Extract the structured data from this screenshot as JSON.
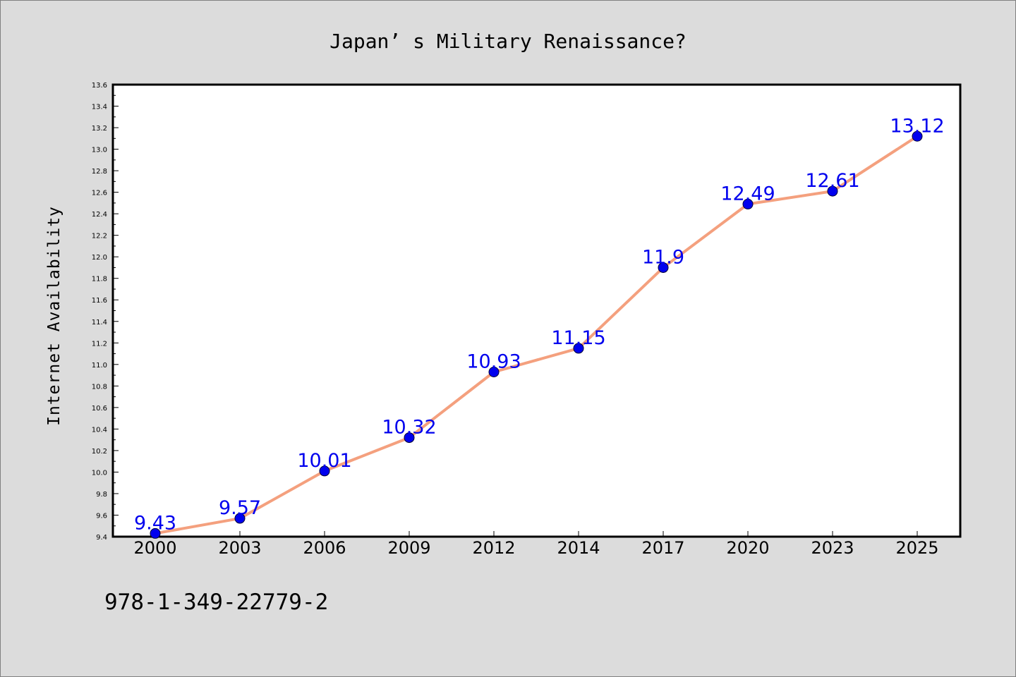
{
  "chart_data": {
    "type": "line",
    "title": "Japan’ s Military Renaissance?",
    "xlabel": "",
    "ylabel": "Internet Availability",
    "categories": [
      "2000",
      "2003",
      "2006",
      "2009",
      "2012",
      "2014",
      "2017",
      "2020",
      "2023",
      "2025"
    ],
    "series": [
      {
        "values": [
          9.43,
          9.57,
          10.01,
          10.32,
          10.93,
          11.15,
          11.9,
          12.49,
          12.61,
          13.12
        ]
      }
    ],
    "data_labels": [
      "9.43",
      "9.57",
      "10.01",
      "10.32",
      "10.93",
      "11.15",
      "11.9",
      "12.49",
      "12.61",
      "13.12"
    ],
    "ylim": [
      9.4,
      13.6
    ],
    "yticks": [
      "9.4",
      "9.6",
      "9.8",
      "10.0",
      "10.2",
      "10.4",
      "10.6",
      "10.8",
      "11.0",
      "11.2",
      "11.4",
      "11.6",
      "11.8",
      "12.0",
      "12.2",
      "12.4",
      "12.6",
      "12.8",
      "13.0",
      "13.2",
      "13.4",
      "13.6"
    ],
    "grid": false,
    "legend": "none",
    "colors": {
      "line": "#f4a07e",
      "marker": "#0000ee",
      "data_label": "#0000ee",
      "background": "#dcdcdc",
      "plot_area": "#ffffff"
    }
  },
  "footer": {
    "isbn": "978-1-349-22779-2"
  }
}
